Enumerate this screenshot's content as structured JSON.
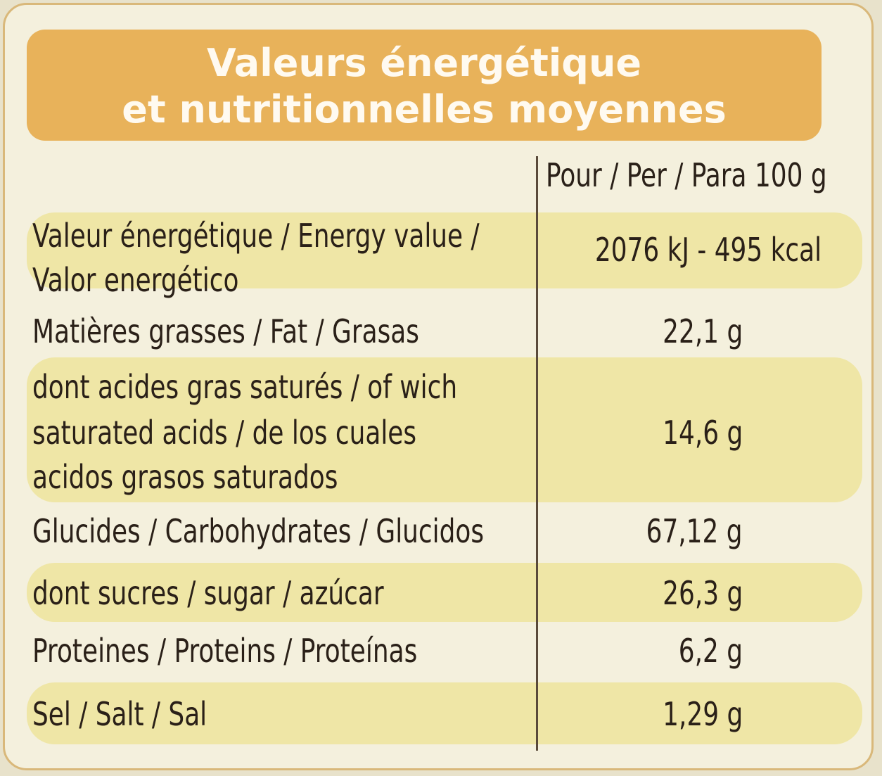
{
  "header": {
    "title": [
      "Valeurs énergétique",
      "et nutritionnelles moyennes"
    ]
  },
  "table": {
    "column_header": "Pour / Per / Para 100 g",
    "rows": [
      {
        "label": [
          "Valeur énergétique / Energy value /",
          "Valor energético"
        ],
        "value": "2076 kJ - 495 kcal"
      },
      {
        "label": [
          "Matières grasses / Fat / Grasas"
        ],
        "value": "22,1 g"
      },
      {
        "label": [
          "dont acides gras saturés / of wich",
          "saturated acids / de los cuales",
          "acidos grasos saturados"
        ],
        "value": "14,6 g"
      },
      {
        "label": [
          "Glucides / Carbohydrates / Glucidos"
        ],
        "value": "67,12 g"
      },
      {
        "label": [
          "dont sucres / sugar / azúcar"
        ],
        "value": "26,3 g"
      },
      {
        "label": [
          "Proteines / Proteins / Proteínas"
        ],
        "value": "6,2 g"
      },
      {
        "label": [
          "Sel / Salt / Sal"
        ],
        "value": "1,29 g"
      }
    ]
  }
}
